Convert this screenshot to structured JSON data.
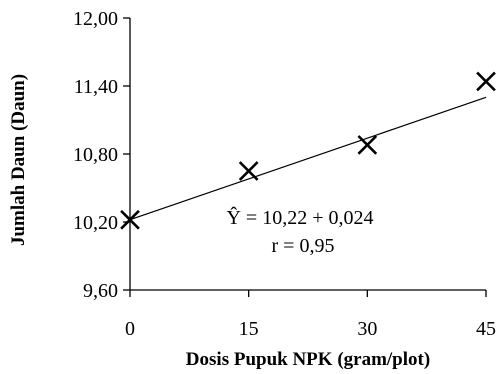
{
  "chart_data": {
    "type": "scatter",
    "title": "",
    "xlabel": "Dosis Pupuk NPK (gram/plot)",
    "ylabel": "Jumlah Daun (Daun)",
    "xlim": [
      0,
      45
    ],
    "ylim": [
      9.6,
      12.0
    ],
    "x_ticks": [
      0,
      15,
      30,
      45
    ],
    "x_tick_labels": [
      "0",
      "15",
      "30",
      "45"
    ],
    "y_ticks": [
      9.6,
      10.2,
      10.8,
      11.4,
      12.0
    ],
    "y_tick_labels": [
      "9,60",
      "10,20",
      "10,80",
      "11,40",
      "12,00"
    ],
    "grid": false,
    "marker": "x",
    "points": [
      {
        "x": 0,
        "y": 10.22
      },
      {
        "x": 15,
        "y": 10.65
      },
      {
        "x": 30,
        "y": 10.88
      },
      {
        "x": 45,
        "y": 11.44
      }
    ],
    "regression_line": {
      "intercept": 10.22,
      "slope": 0.024
    },
    "annotations": [
      "Ŷ = 10,22 + 0,024",
      "r = 0,95"
    ]
  }
}
